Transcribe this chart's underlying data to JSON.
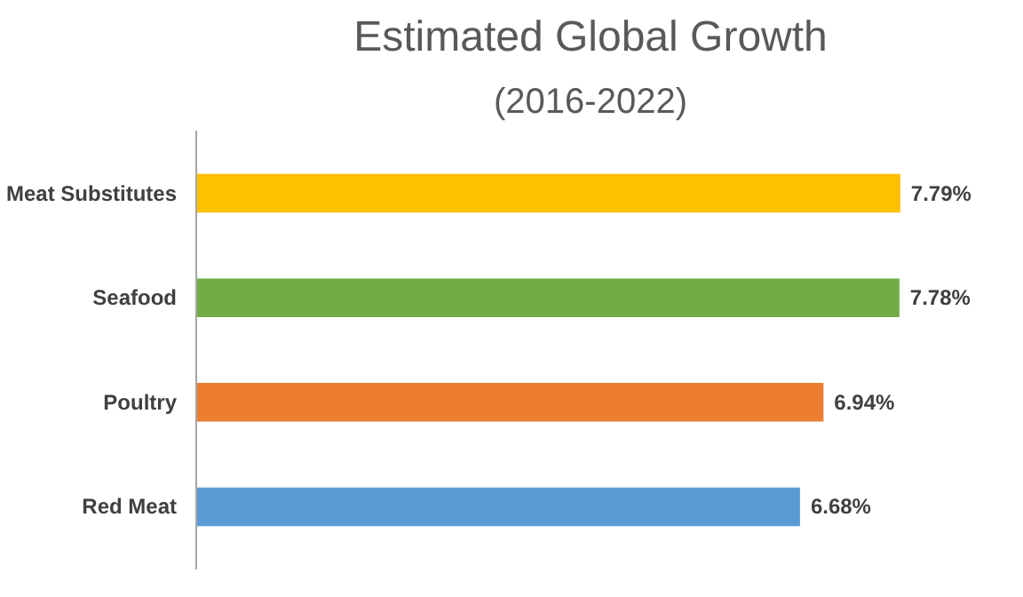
{
  "chart_data": {
    "type": "bar",
    "orientation": "horizontal",
    "title": "Estimated Global Growth",
    "subtitle": "(2016-2022)",
    "categories": [
      "Meat Substitutes",
      "Seafood",
      "Poultry",
      "Red Meat"
    ],
    "values": [
      7.79,
      7.78,
      6.94,
      6.68
    ],
    "colors": [
      "#ffc000",
      "#70ad47",
      "#ed7d31",
      "#5b9bd5"
    ],
    "value_labels": [
      "7.79%",
      "7.78%",
      "6.94%",
      "6.68%"
    ],
    "tick_labels": "y",
    "grid": false
  }
}
